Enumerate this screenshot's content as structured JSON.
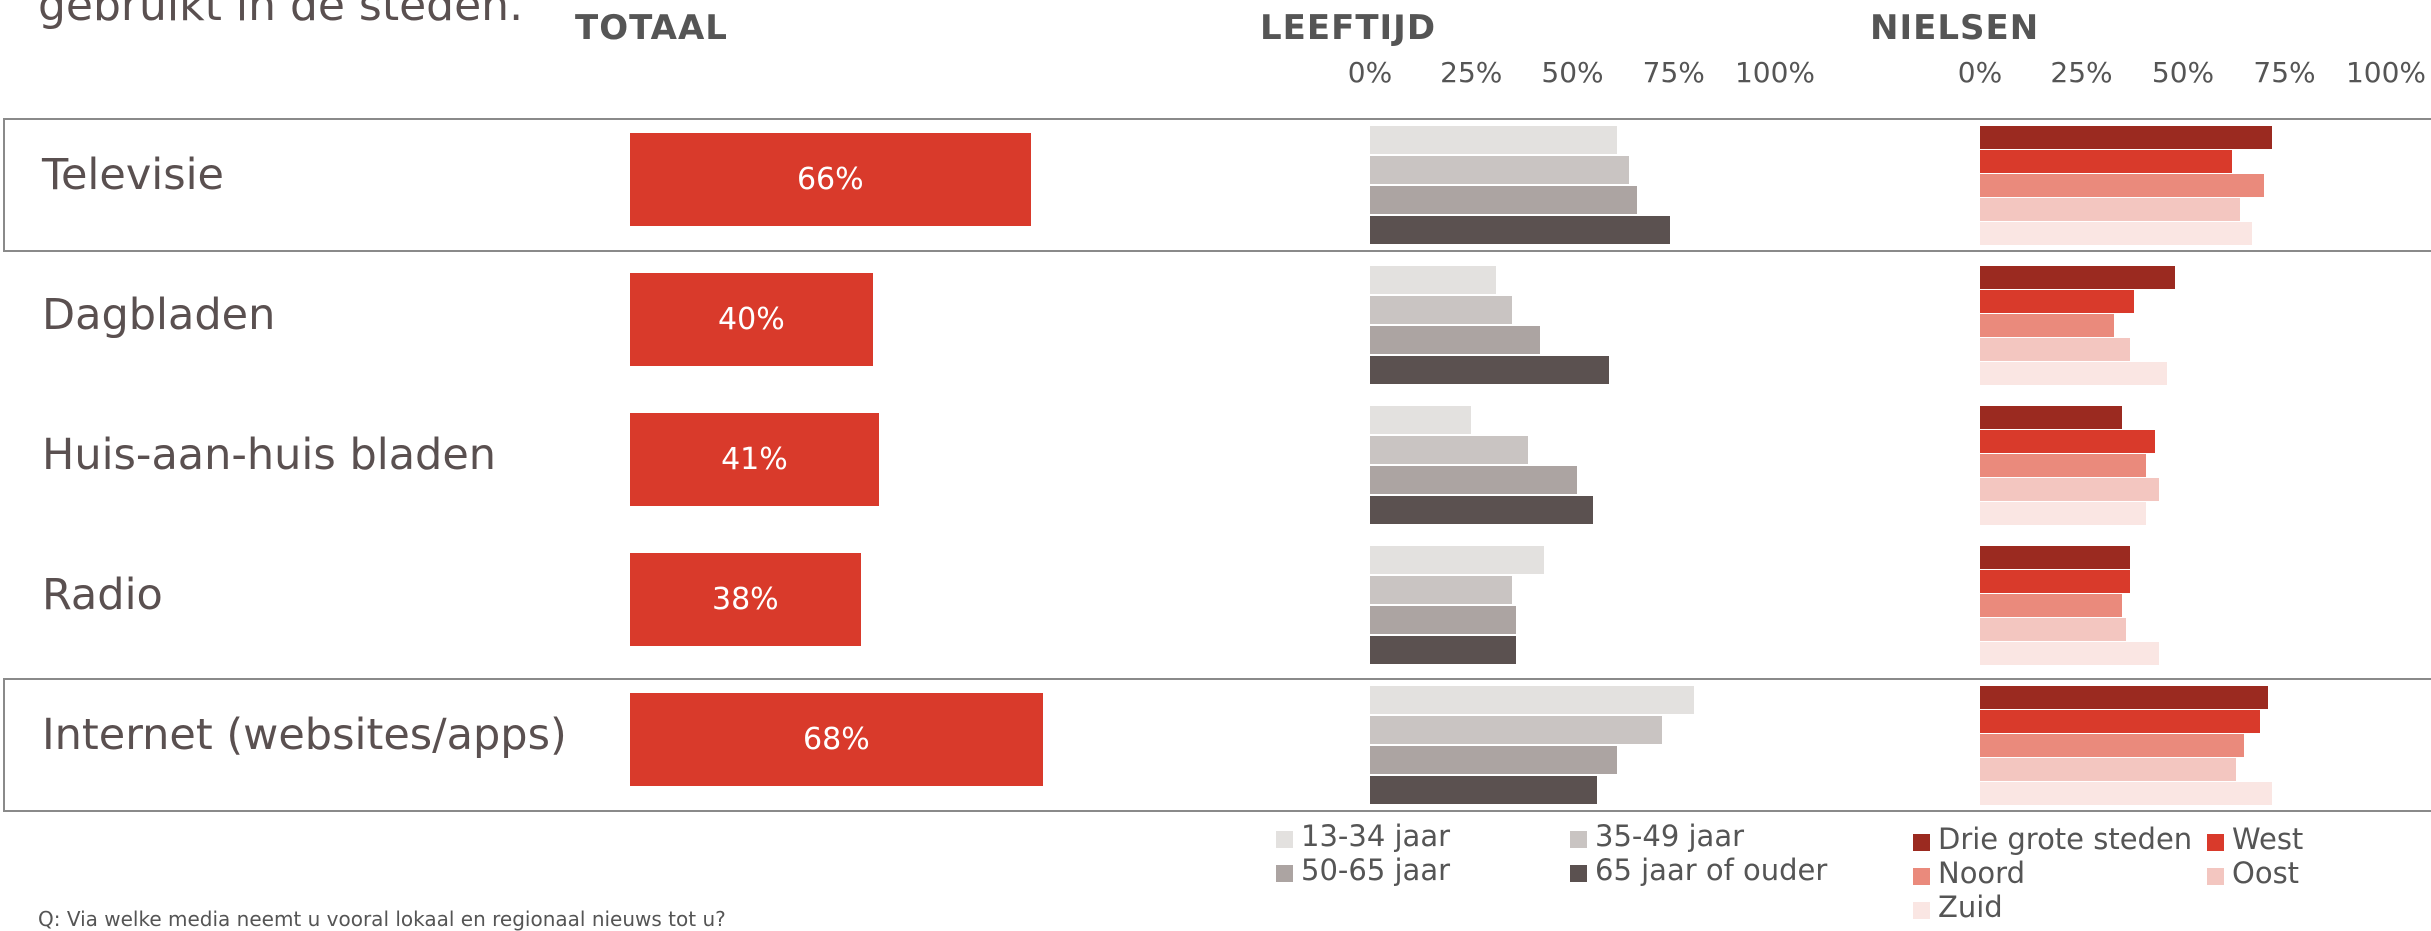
{
  "intro_text": "gebruikt in de steden.",
  "footnote": "Q: Via welke media neemt u vooral lokaal en regionaal nieuws tot u?",
  "column_headers": {
    "totaal": "TOTAAL",
    "leeftijd": "LEEFTIJD",
    "nielsen": "NIELSEN"
  },
  "chart_data": [
    {
      "type": "bar",
      "title": "TOTAAL",
      "categories": [
        "Televisie",
        "Dagbladen",
        "Huis-aan-huis bladen",
        "Radio",
        "Internet (websites/apps)"
      ],
      "values": [
        66,
        40,
        41,
        38,
        68
      ],
      "value_labels": [
        "66%",
        "40%",
        "41%",
        "38%",
        "68%"
      ],
      "unit": "%",
      "color": "#d93a2b",
      "highlighted_categories": [
        "Televisie",
        "Internet (websites/apps)"
      ]
    },
    {
      "type": "bar",
      "title": "LEEFTIJD",
      "orientation": "horizontal",
      "categories": [
        "Televisie",
        "Dagbladen",
        "Huis-aan-huis bladen",
        "Radio",
        "Internet (websites/apps)"
      ],
      "xlim": [
        0,
        100
      ],
      "x_ticks": [
        "0%",
        "25%",
        "50%",
        "75%",
        "100%"
      ],
      "series": [
        {
          "name": "13-34 jaar",
          "color": "#e3e1df",
          "values": [
            61,
            31,
            25,
            43,
            80
          ]
        },
        {
          "name": "35-49 jaar",
          "color": "#c9c4c2",
          "values": [
            64,
            35,
            39,
            35,
            72
          ]
        },
        {
          "name": "50-65 jaar",
          "color": "#aca4a2",
          "values": [
            66,
            42,
            51,
            36,
            61
          ]
        },
        {
          "name": "65 jaar of ouder",
          "color": "#5b5150",
          "values": [
            74,
            59,
            55,
            36,
            56
          ]
        }
      ],
      "legend_position": "bottom"
    },
    {
      "type": "bar",
      "title": "NIELSEN",
      "orientation": "horizontal",
      "categories": [
        "Televisie",
        "Dagbladen",
        "Huis-aan-huis bladen",
        "Radio",
        "Internet (websites/apps)"
      ],
      "xlim": [
        0,
        100
      ],
      "x_ticks": [
        "0%",
        "25%",
        "50%",
        "75%",
        "100%"
      ],
      "series": [
        {
          "name": "Drie grote steden",
          "color": "#9b2a20",
          "values": [
            72,
            48,
            35,
            37,
            71
          ]
        },
        {
          "name": "West",
          "color": "#d93a2b",
          "values": [
            62,
            38,
            43,
            37,
            69
          ]
        },
        {
          "name": "Noord",
          "color": "#ea8a7c",
          "values": [
            70,
            33,
            41,
            35,
            65
          ]
        },
        {
          "name": "Oost",
          "color": "#f3c6c0",
          "values": [
            64,
            37,
            44,
            36,
            63
          ]
        },
        {
          "name": "Zuid",
          "color": "#fae6e3",
          "values": [
            67,
            46,
            41,
            44,
            72
          ]
        }
      ],
      "legend_position": "bottom"
    }
  ]
}
